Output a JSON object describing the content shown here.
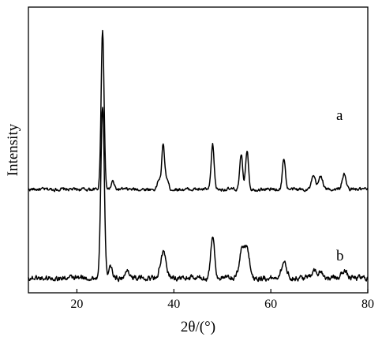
{
  "chart_data": {
    "type": "line",
    "title": "",
    "xlabel": "2θ/(°)",
    "ylabel": "Intensity",
    "xlim": [
      10,
      80
    ],
    "xticks": [
      20,
      40,
      60,
      80
    ],
    "yticks_shown": false,
    "grid": false,
    "legend": "none",
    "line_color": "#000000",
    "series": [
      {
        "name": "a",
        "baseline": 1.0,
        "noise": 0.03,
        "peaks": [
          {
            "x": 25.3,
            "h": 1.62,
            "w": 0.3
          },
          {
            "x": 27.4,
            "h": 0.08,
            "w": 0.3
          },
          {
            "x": 36.9,
            "h": 0.1,
            "w": 0.3
          },
          {
            "x": 37.8,
            "h": 0.45,
            "w": 0.3
          },
          {
            "x": 38.6,
            "h": 0.1,
            "w": 0.3
          },
          {
            "x": 48.0,
            "h": 0.45,
            "w": 0.3
          },
          {
            "x": 53.9,
            "h": 0.35,
            "w": 0.3
          },
          {
            "x": 55.1,
            "h": 0.4,
            "w": 0.3
          },
          {
            "x": 62.7,
            "h": 0.32,
            "w": 0.3
          },
          {
            "x": 68.8,
            "h": 0.13,
            "w": 0.4
          },
          {
            "x": 70.3,
            "h": 0.14,
            "w": 0.4
          },
          {
            "x": 75.1,
            "h": 0.15,
            "w": 0.4
          }
        ]
      },
      {
        "name": "b",
        "baseline": 0.1,
        "noise": 0.05,
        "peaks": [
          {
            "x": 25.3,
            "h": 1.75,
            "w": 0.35
          },
          {
            "x": 27.0,
            "h": 0.1,
            "w": 0.4
          },
          {
            "x": 30.5,
            "h": 0.08,
            "w": 0.4
          },
          {
            "x": 37.8,
            "h": 0.25,
            "w": 0.6
          },
          {
            "x": 48.0,
            "h": 0.42,
            "w": 0.4
          },
          {
            "x": 54.0,
            "h": 0.28,
            "w": 0.5
          },
          {
            "x": 55.1,
            "h": 0.3,
            "w": 0.5
          },
          {
            "x": 62.7,
            "h": 0.15,
            "w": 0.6
          },
          {
            "x": 68.8,
            "h": 0.08,
            "w": 0.5
          },
          {
            "x": 70.3,
            "h": 0.07,
            "w": 0.5
          },
          {
            "x": 75.1,
            "h": 0.08,
            "w": 0.5
          }
        ]
      }
    ]
  }
}
